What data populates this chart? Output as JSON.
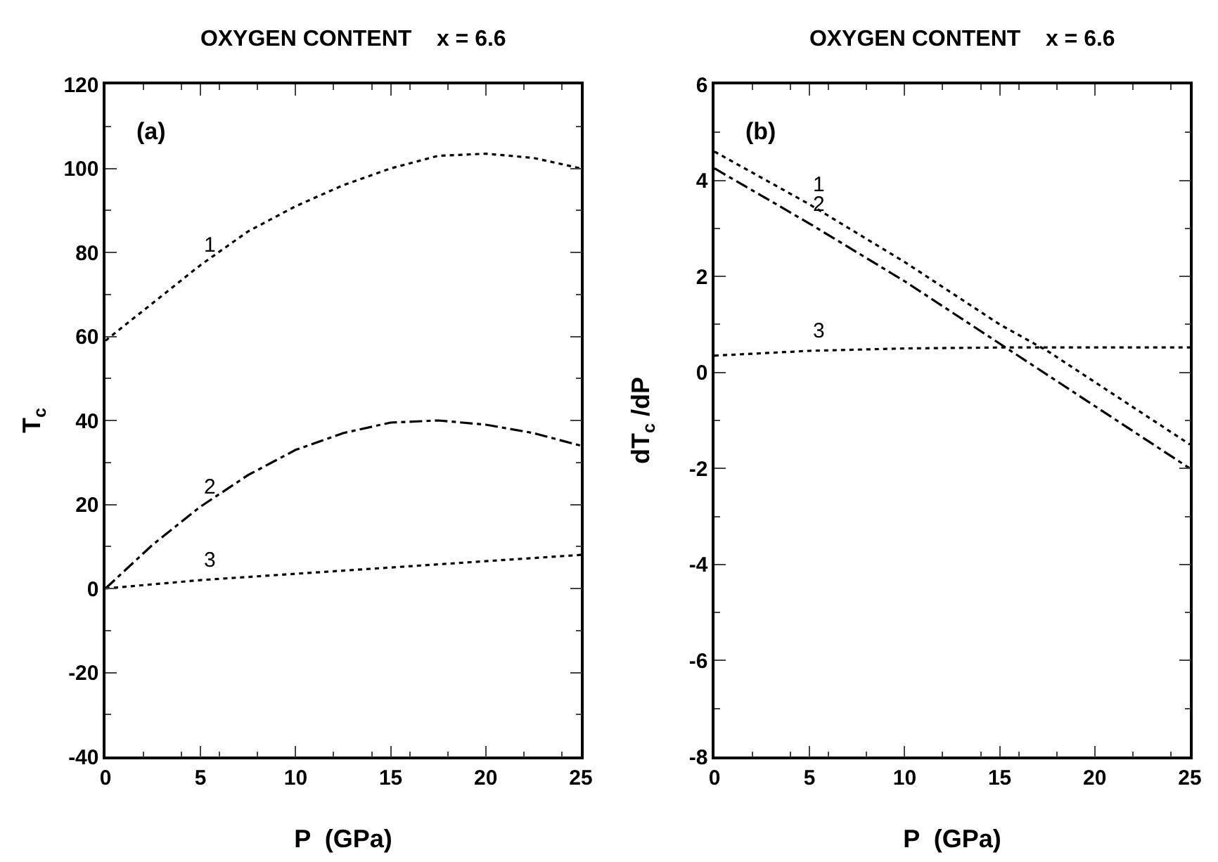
{
  "chart_data": [
    {
      "type": "line",
      "title": "OXYGEN CONTENT    x = 6.6",
      "xlabel": "P  (GPa)",
      "ylabel": "T$_{c}$",
      "xlim": [
        0,
        25
      ],
      "xticks": [
        0,
        5,
        10,
        15,
        20,
        25
      ],
      "ylim": [
        -40,
        120
      ],
      "yticks": [
        -40,
        -20,
        0,
        20,
        40,
        60,
        80,
        100,
        120
      ],
      "grid": false,
      "legend": false,
      "marker": "none",
      "annotations": [
        "(a)"
      ],
      "series": [
        {
          "name": "1",
          "color": "#000000",
          "line_style": "dotted",
          "x": [
            0,
            2.5,
            5,
            7.5,
            10,
            12.5,
            15,
            17.5,
            20,
            22.5,
            25
          ],
          "values": [
            59,
            68,
            77,
            85,
            91,
            96,
            100,
            103,
            103.5,
            102.5,
            100
          ]
        },
        {
          "name": "2",
          "color": "#000000",
          "line_style": "dashed",
          "x": [
            0,
            2.5,
            5,
            7.5,
            10,
            12.5,
            15,
            17.5,
            20,
            22.5,
            25
          ],
          "values": [
            0,
            10.5,
            19.5,
            27,
            33,
            37,
            39.5,
            40,
            39,
            37,
            34
          ]
        },
        {
          "name": "3",
          "color": "#000000",
          "line_style": "dotted",
          "x": [
            0,
            5,
            10,
            15,
            20,
            25
          ],
          "values": [
            0,
            2,
            3.5,
            5,
            6.5,
            8
          ]
        }
      ]
    },
    {
      "type": "line",
      "title": "OXYGEN CONTENT    x = 6.6",
      "xlabel": "P  (GPa)",
      "ylabel": "dT$_{c}$ /dP",
      "xlim": [
        0,
        25
      ],
      "xticks": [
        0,
        5,
        10,
        15,
        20,
        25
      ],
      "ylim": [
        -8,
        6
      ],
      "yticks": [
        -8,
        -6,
        -4,
        -2,
        0,
        2,
        4,
        6
      ],
      "grid": false,
      "legend": false,
      "marker": "none",
      "annotations": [
        "(b)"
      ],
      "series": [
        {
          "name": "1",
          "color": "#000000",
          "line_style": "dotted",
          "x": [
            0,
            5,
            10,
            15,
            17.5,
            20,
            25
          ],
          "values": [
            4.6,
            3.5,
            2.3,
            1.0,
            0.45,
            -0.2,
            -1.5
          ]
        },
        {
          "name": "2",
          "color": "#000000",
          "line_style": "dashed",
          "x": [
            0,
            5,
            10,
            15,
            20,
            25
          ],
          "values": [
            4.25,
            3.1,
            1.9,
            0.6,
            -0.7,
            -2.0
          ]
        },
        {
          "name": "3",
          "color": "#000000",
          "line_style": "dotted",
          "x": [
            0,
            5,
            10,
            15,
            20,
            25
          ],
          "values": [
            0.35,
            0.45,
            0.5,
            0.52,
            0.52,
            0.52
          ]
        }
      ]
    }
  ]
}
